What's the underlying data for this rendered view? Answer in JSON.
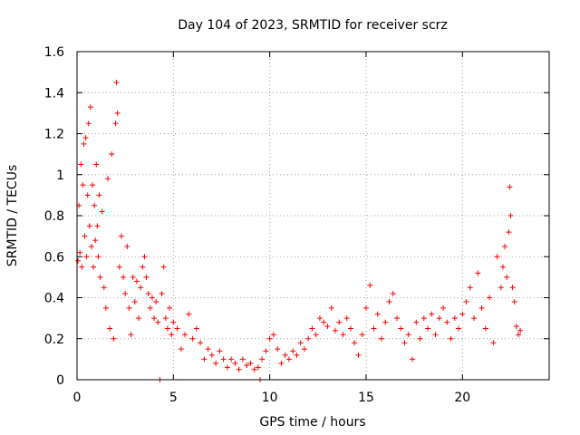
{
  "chart_data": {
    "type": "scatter",
    "title": "Day 104 of 2023, SRMTID for receiver scrz",
    "xlabel": "GPS time / hours",
    "ylabel": "SRMTID / TECUs",
    "xlim": [
      0,
      24.5
    ],
    "ylim": [
      0,
      1.6
    ],
    "xticks": [
      0,
      5,
      10,
      15,
      20
    ],
    "yticks": [
      0,
      0.2,
      0.4,
      0.6,
      0.8,
      1,
      1.2,
      1.4,
      1.6
    ],
    "xtick_labels": [
      "0",
      "5",
      "10",
      "15",
      "20"
    ],
    "ytick_labels": [
      "0",
      "0.2",
      "0.4",
      "0.6",
      "0.8",
      "1",
      "1.2",
      "1.4",
      "1.6"
    ],
    "grid": true,
    "marker": "+",
    "color": "#ff0000",
    "series": [
      {
        "name": "SRMTID",
        "points": [
          [
            0.05,
            0.58
          ],
          [
            0.1,
            0.85
          ],
          [
            0.15,
            0.62
          ],
          [
            0.2,
            1.05
          ],
          [
            0.25,
            0.55
          ],
          [
            0.3,
            0.95
          ],
          [
            0.35,
            1.15
          ],
          [
            0.4,
            0.7
          ],
          [
            0.45,
            1.18
          ],
          [
            0.5,
            0.6
          ],
          [
            0.55,
            0.9
          ],
          [
            0.6,
            1.25
          ],
          [
            0.65,
            0.75
          ],
          [
            0.7,
            1.33
          ],
          [
            0.75,
            0.65
          ],
          [
            0.8,
            0.95
          ],
          [
            0.85,
            0.55
          ],
          [
            0.9,
            0.85
          ],
          [
            0.95,
            0.68
          ],
          [
            1.0,
            1.05
          ],
          [
            1.05,
            0.75
          ],
          [
            1.1,
            0.6
          ],
          [
            1.15,
            0.9
          ],
          [
            1.2,
            0.5
          ],
          [
            1.3,
            0.82
          ],
          [
            1.4,
            0.45
          ],
          [
            1.5,
            0.35
          ],
          [
            1.6,
            0.98
          ],
          [
            1.7,
            0.25
          ],
          [
            1.8,
            1.1
          ],
          [
            1.9,
            0.2
          ],
          [
            2.0,
            1.25
          ],
          [
            2.05,
            1.45
          ],
          [
            2.1,
            1.3
          ],
          [
            2.2,
            0.55
          ],
          [
            2.3,
            0.7
          ],
          [
            2.4,
            0.5
          ],
          [
            2.5,
            0.42
          ],
          [
            2.6,
            0.65
          ],
          [
            2.7,
            0.35
          ],
          [
            2.8,
            0.22
          ],
          [
            2.9,
            0.5
          ],
          [
            3.0,
            0.38
          ],
          [
            3.1,
            0.48
          ],
          [
            3.2,
            0.3
          ],
          [
            3.3,
            0.45
          ],
          [
            3.4,
            0.55
          ],
          [
            3.5,
            0.6
          ],
          [
            3.6,
            0.5
          ],
          [
            3.7,
            0.42
          ],
          [
            3.8,
            0.35
          ],
          [
            3.9,
            0.4
          ],
          [
            4.0,
            0.3
          ],
          [
            4.1,
            0.38
          ],
          [
            4.2,
            0.28
          ],
          [
            4.3,
            0.0
          ],
          [
            4.4,
            0.42
          ],
          [
            4.5,
            0.55
          ],
          [
            4.6,
            0.3
          ],
          [
            4.7,
            0.25
          ],
          [
            4.8,
            0.35
          ],
          [
            4.9,
            0.22
          ],
          [
            5.0,
            0.28
          ],
          [
            5.2,
            0.25
          ],
          [
            5.4,
            0.15
          ],
          [
            5.6,
            0.22
          ],
          [
            5.8,
            0.32
          ],
          [
            6.0,
            0.2
          ],
          [
            6.2,
            0.25
          ],
          [
            6.4,
            0.18
          ],
          [
            6.6,
            0.1
          ],
          [
            6.8,
            0.15
          ],
          [
            7.0,
            0.12
          ],
          [
            7.2,
            0.08
          ],
          [
            7.4,
            0.14
          ],
          [
            7.6,
            0.1
          ],
          [
            7.8,
            0.06
          ],
          [
            8.0,
            0.1
          ],
          [
            8.2,
            0.08
          ],
          [
            8.4,
            0.05
          ],
          [
            8.6,
            0.1
          ],
          [
            8.8,
            0.07
          ],
          [
            9.0,
            0.08
          ],
          [
            9.2,
            0.05
          ],
          [
            9.4,
            0.06
          ],
          [
            9.5,
            0.0
          ],
          [
            9.6,
            0.1
          ],
          [
            9.8,
            0.14
          ],
          [
            10.0,
            0.2
          ],
          [
            10.2,
            0.22
          ],
          [
            10.4,
            0.15
          ],
          [
            10.6,
            0.08
          ],
          [
            10.8,
            0.12
          ],
          [
            11.0,
            0.1
          ],
          [
            11.2,
            0.14
          ],
          [
            11.4,
            0.12
          ],
          [
            11.6,
            0.18
          ],
          [
            11.8,
            0.15
          ],
          [
            12.0,
            0.2
          ],
          [
            12.2,
            0.25
          ],
          [
            12.4,
            0.22
          ],
          [
            12.6,
            0.3
          ],
          [
            12.8,
            0.28
          ],
          [
            13.0,
            0.26
          ],
          [
            13.2,
            0.35
          ],
          [
            13.4,
            0.24
          ],
          [
            13.6,
            0.28
          ],
          [
            13.8,
            0.22
          ],
          [
            14.0,
            0.3
          ],
          [
            14.2,
            0.25
          ],
          [
            14.4,
            0.18
          ],
          [
            14.6,
            0.12
          ],
          [
            14.8,
            0.22
          ],
          [
            15.0,
            0.35
          ],
          [
            15.2,
            0.46
          ],
          [
            15.4,
            0.25
          ],
          [
            15.6,
            0.32
          ],
          [
            15.8,
            0.2
          ],
          [
            16.0,
            0.28
          ],
          [
            16.2,
            0.38
          ],
          [
            16.4,
            0.42
          ],
          [
            16.6,
            0.3
          ],
          [
            16.8,
            0.25
          ],
          [
            17.0,
            0.18
          ],
          [
            17.2,
            0.22
          ],
          [
            17.4,
            0.1
          ],
          [
            17.6,
            0.28
          ],
          [
            17.8,
            0.2
          ],
          [
            18.0,
            0.3
          ],
          [
            18.2,
            0.25
          ],
          [
            18.4,
            0.32
          ],
          [
            18.6,
            0.22
          ],
          [
            18.8,
            0.3
          ],
          [
            19.0,
            0.35
          ],
          [
            19.2,
            0.28
          ],
          [
            19.4,
            0.2
          ],
          [
            19.6,
            0.3
          ],
          [
            19.8,
            0.25
          ],
          [
            20.0,
            0.32
          ],
          [
            20.2,
            0.38
          ],
          [
            20.4,
            0.45
          ],
          [
            20.6,
            0.3
          ],
          [
            20.8,
            0.52
          ],
          [
            21.0,
            0.35
          ],
          [
            21.2,
            0.25
          ],
          [
            21.4,
            0.4
          ],
          [
            21.6,
            0.18
          ],
          [
            21.8,
            0.6
          ],
          [
            22.0,
            0.45
          ],
          [
            22.1,
            0.55
          ],
          [
            22.2,
            0.65
          ],
          [
            22.3,
            0.5
          ],
          [
            22.4,
            0.72
          ],
          [
            22.45,
            0.94
          ],
          [
            22.5,
            0.8
          ],
          [
            22.6,
            0.45
          ],
          [
            22.7,
            0.38
          ],
          [
            22.8,
            0.26
          ],
          [
            22.9,
            0.22
          ],
          [
            23.0,
            0.24
          ]
        ]
      }
    ]
  }
}
